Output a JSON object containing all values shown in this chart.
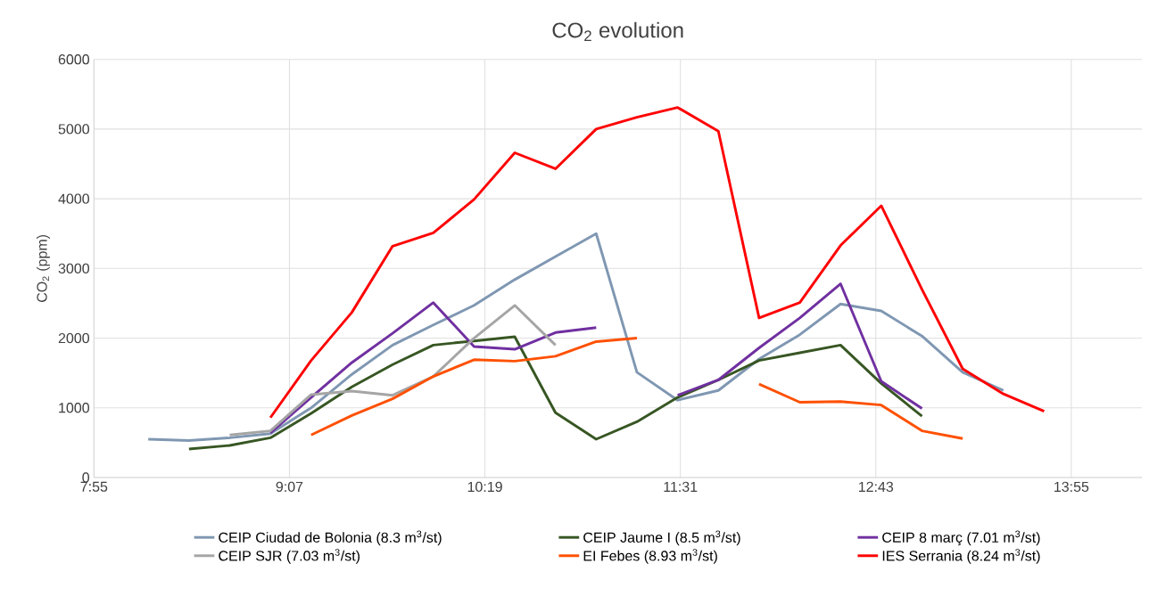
{
  "chart_data": {
    "type": "line",
    "title": "CO$_{2}$ evolution",
    "ylabel": "CO$_{2}$ (ppm)",
    "xlim": [
      7.91667,
      14.35
    ],
    "xticks": [
      {
        "value": 7.91667,
        "label": "7:55"
      },
      {
        "value": 9.11667,
        "label": "9:07"
      },
      {
        "value": 10.31667,
        "label": "10:19"
      },
      {
        "value": 11.51667,
        "label": "11:31"
      },
      {
        "value": 12.71667,
        "label": "12:43"
      },
      {
        "value": 13.91667,
        "label": "13:55"
      }
    ],
    "ylim": [
      0,
      6000
    ],
    "yticks": [
      0,
      1000,
      2000,
      3000,
      4000,
      5000,
      6000
    ],
    "grid": true,
    "legend": "bottom",
    "marker": "none",
    "line_style": "solid",
    "series": [
      {
        "name": "CEIP Ciudad de Bolonia    (8.3 m$^{3}$/st)",
        "color": "#7f97b2",
        "x": [
          8.25,
          8.5,
          8.75,
          9.0,
          9.25,
          9.5,
          9.75,
          10.0,
          10.25,
          10.5,
          10.75,
          11.0,
          11.25,
          11.5,
          11.75,
          12.0,
          12.25,
          12.5,
          12.75,
          13.0,
          13.25,
          13.5
        ],
        "values": [
          550,
          530,
          570,
          630,
          1000,
          1480,
          1900,
          2190,
          2470,
          2840,
          3170,
          3500,
          1510,
          1110,
          1250,
          1700,
          2050,
          2490,
          2390,
          2030,
          1510,
          1250
        ]
      },
      {
        "name": "CEIP Jaume I    (8.5 m$^{3}$/st)",
        "color": "#375623",
        "x": [
          8.5,
          8.75,
          9.0,
          9.25,
          9.5,
          9.75,
          10.0,
          10.25,
          10.5,
          10.75,
          11.0,
          11.25,
          11.5,
          11.75,
          12.0,
          12.25,
          12.5,
          12.75,
          13.0
        ],
        "values": [
          410,
          460,
          570,
          920,
          1300,
          1620,
          1900,
          1960,
          2020,
          930,
          550,
          800,
          1150,
          1400,
          1680,
          1790,
          1900,
          1350,
          880
        ]
      },
      {
        "name": "CEIP 8 març    (7.01 m$^{3}$/st)",
        "color": "#7030a0",
        "x": [
          9.0,
          9.25,
          9.5,
          9.75,
          10.0,
          10.25,
          10.5,
          10.75,
          11.0,
          11.25,
          11.5,
          11.75,
          12.0,
          12.25,
          12.5,
          12.75,
          13.0
        ],
        "values": [
          640,
          1150,
          1650,
          2070,
          2510,
          1880,
          1840,
          2080,
          2150,
          null,
          1180,
          1400,
          1860,
          2290,
          2780,
          1380,
          990
        ]
      },
      {
        "name": "CEIP SJR    (7.03 m$^{3}$/st)",
        "color": "#a5a5a5",
        "x": [
          8.75,
          9.0,
          9.25,
          9.5,
          9.75,
          10.0,
          10.25,
          10.5,
          10.75
        ],
        "values": [
          610,
          670,
          1190,
          1240,
          1180,
          1450,
          2000,
          2470,
          1900
        ]
      },
      {
        "name": "EI Febes    (8.93 m$^{3}$/st)",
        "color": "#ff5000",
        "x": [
          9.25,
          9.5,
          9.75,
          10.0,
          10.25,
          10.5,
          10.75,
          11.0,
          11.25,
          11.5,
          11.75,
          12.0,
          12.25,
          12.5,
          12.75,
          13.0,
          13.25
        ],
        "values": [
          610,
          890,
          1130,
          1450,
          1690,
          1670,
          1740,
          1950,
          2000,
          null,
          null,
          1340,
          1080,
          1090,
          1040,
          670,
          560
        ]
      },
      {
        "name": "IES Serrania    (8.24 m$^{3}$/st)",
        "color": "#ff0000",
        "x": [
          9.0,
          9.25,
          9.5,
          9.75,
          10.0,
          10.25,
          10.5,
          10.75,
          11.0,
          11.25,
          11.5,
          11.75,
          12.0,
          12.25,
          12.5,
          12.75,
          13.0,
          13.25,
          13.5,
          13.75
        ],
        "values": [
          860,
          1680,
          2370,
          3320,
          3510,
          3990,
          4660,
          4430,
          5000,
          5170,
          5310,
          4970,
          2290,
          2510,
          3330,
          3900,
          2700,
          1560,
          1200,
          950
        ]
      }
    ]
  }
}
